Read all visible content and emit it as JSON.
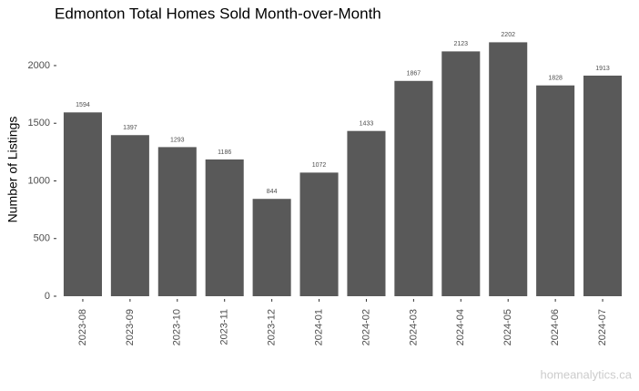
{
  "chart_data": {
    "type": "bar",
    "title": "Edmonton Total Homes Sold Month-over-Month",
    "y_label": "Number of Listings",
    "watermark": "homeanalytics.ca",
    "categories": [
      "2023-08",
      "2023-09",
      "2023-10",
      "2023-11",
      "2023-12",
      "2024-01",
      "2024-02",
      "2024-03",
      "2024-04",
      "2024-05",
      "2024-06",
      "2024-07"
    ],
    "values": [
      1594,
      1397,
      1293,
      1186,
      844,
      1072,
      1433,
      1867,
      2123,
      2202,
      1828,
      1913
    ],
    "color": "#595959",
    "ylim": [
      0,
      2300
    ],
    "yticks": [
      0,
      500,
      1000,
      1500,
      2000
    ],
    "grid": false
  }
}
